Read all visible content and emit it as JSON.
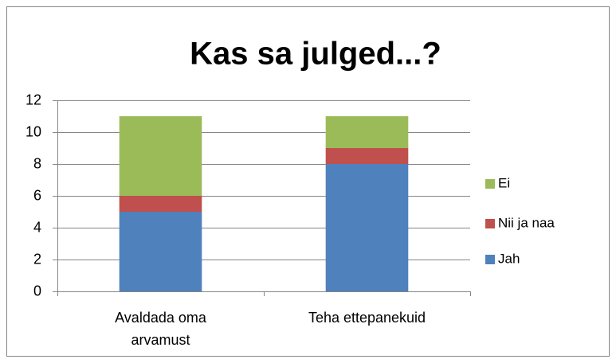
{
  "chart_data": {
    "type": "bar",
    "stacked": true,
    "title": "Kas sa julged...?",
    "categories": [
      "Avaldada oma arvamust",
      "Teha ettepanekuid"
    ],
    "series": [
      {
        "name": "Jah",
        "color": "#4f81bd",
        "values": [
          5,
          8
        ]
      },
      {
        "name": "Nii ja naa",
        "color": "#c0504d",
        "values": [
          1,
          1
        ]
      },
      {
        "name": "Ei",
        "color": "#9bbb59",
        "values": [
          5,
          2
        ]
      }
    ],
    "ylim": [
      0,
      12
    ],
    "yticks": [
      0,
      2,
      4,
      6,
      8,
      10,
      12
    ],
    "grid": true,
    "legend": "right"
  }
}
